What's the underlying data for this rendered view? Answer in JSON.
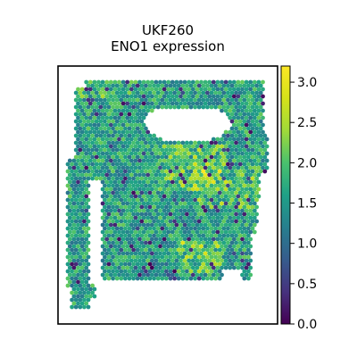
{
  "chart_data": {
    "type": "scatter",
    "subtype": "spatial-hexbin",
    "title": "UKF260",
    "subtitle": "ENO1 expression",
    "xlabel": "",
    "ylabel": "",
    "colormap": "viridis",
    "colorbar": {
      "vmin": 0.0,
      "vmax": 3.2,
      "ticks": [
        0.0,
        0.5,
        1.0,
        1.5,
        2.0,
        2.5,
        3.0
      ],
      "tick_labels": [
        "0.0",
        "0.5",
        "1.0",
        "1.5",
        "2.0",
        "2.5",
        "3.0"
      ]
    },
    "tissue": {
      "dominant_value_range": [
        1.3,
        2.2
      ],
      "high_value_regions": [
        {
          "area": "right-center band",
          "value": 2.6
        },
        {
          "area": "lower-right cluster",
          "value": 2.8
        },
        {
          "area": "upper-left edge",
          "value": 2.6
        }
      ],
      "low_value_regions": [
        {
          "area": "scattered left-center",
          "value": 0.4
        },
        {
          "area": "bottom edge",
          "value": 0.2
        }
      ],
      "gaps": [
        "upper-center hole",
        "narrow vertical gap left"
      ]
    },
    "grid": false,
    "axes_ticks": false
  }
}
